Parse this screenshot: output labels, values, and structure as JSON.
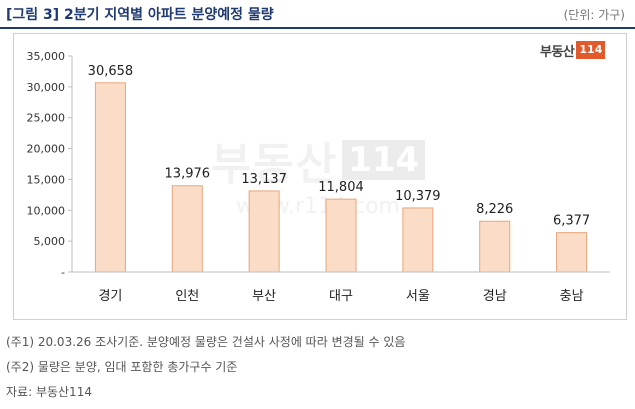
{
  "header": {
    "title": "[그림 3] 2분기 지역별 아파트 분양예정 물량",
    "unit": "(단위: 가구)"
  },
  "logo": {
    "text": "부동산",
    "box": "114"
  },
  "watermark": {
    "text": "부동산",
    "box": "114",
    "url": "www.r114.com"
  },
  "notes": [
    "(주1) 20.03.26 조사기준. 분양예정 물량은 건설사 사정에 따라 변경될 수 있음",
    "(주2) 물량은 분양, 임대 포함한 총가구수 기준",
    "자료: 부동산114"
  ],
  "chart_data": {
    "type": "bar",
    "categories": [
      "경기",
      "인천",
      "부산",
      "대구",
      "서울",
      "경남",
      "충남"
    ],
    "values": [
      30658,
      13976,
      13137,
      11804,
      10379,
      8226,
      6377
    ],
    "value_labels": [
      "30,658",
      "13,976",
      "13,137",
      "11,804",
      "10,379",
      "8,226",
      "6,377"
    ],
    "ylim": [
      0,
      35000
    ],
    "yticks": [
      0,
      5000,
      10000,
      15000,
      20000,
      25000,
      30000,
      35000
    ],
    "ytick_labels": [
      "-",
      "5,000",
      "10,000",
      "15,000",
      "20,000",
      "25,000",
      "30,000",
      "35,000"
    ],
    "grid": false,
    "bar_fill": "#fbdcc6",
    "bar_stroke": "#e8a67a"
  }
}
